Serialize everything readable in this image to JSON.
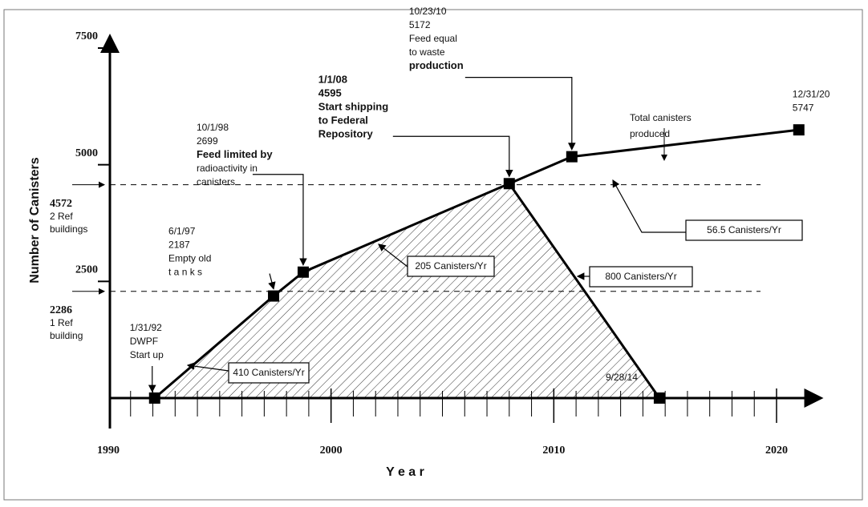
{
  "chart_data": {
    "type": "line",
    "xlabel": "Y e a r",
    "ylabel": "Number of Canisters",
    "xlim": [
      1990,
      2022
    ],
    "xticks": [
      1990,
      2000,
      2010,
      2020
    ],
    "xminorticks": [
      1991,
      1992,
      1993,
      1994,
      1995,
      1996,
      1997,
      1998,
      1999,
      2001,
      2002,
      2003,
      2004,
      2005,
      2006,
      2007,
      2008,
      2009,
      2011,
      2012,
      2013,
      2014,
      2015,
      2016,
      2017,
      2018,
      2019
    ],
    "ylim": [
      0,
      7500
    ],
    "yticks": [
      2500,
      5000,
      7500
    ],
    "series": [
      {
        "color": "#000000",
        "x": [
          1992.08,
          1997.42,
          1998.75,
          2008.0,
          2010.81,
          2021.0
        ],
        "values": [
          0,
          2187,
          2699,
          4595,
          5172,
          5747
        ],
        "point_labels": [
          [
            "1/31/92",
            "DWPF",
            "Start up"
          ],
          [
            "6/1/97",
            "2187",
            "Empty old",
            "t a n k s"
          ],
          [
            "10/1/98",
            "2699",
            "Feed limited by",
            "radioactivity in",
            "canisters"
          ],
          [
            "1/1/08",
            "4595",
            "Start shipping",
            "to Federal",
            "Repository"
          ],
          [
            "10/23/10",
            "5172",
            "Feed equal",
            "to waste",
            "production"
          ],
          [
            "12/31/20",
            "5747"
          ]
        ]
      },
      {
        "color": "#000000",
        "x": [
          2008.0,
          2014.74
        ],
        "values": [
          4595,
          0
        ],
        "point_labels": [
          null,
          [
            "9/28/14"
          ]
        ]
      }
    ],
    "reference_lines": [
      {
        "value": 4572,
        "label": [
          "4572",
          "2 Ref",
          "buildings"
        ]
      },
      {
        "value": 2286,
        "label": [
          "2286",
          "1 Ref",
          "building"
        ]
      }
    ],
    "rate_labels": [
      "410 Canisters/Yr",
      "205 Canisters/Yr",
      "800 Canisters/Yr",
      "56.5 Canisters/Yr"
    ],
    "note": [
      "Total canisters",
      "produced"
    ]
  }
}
